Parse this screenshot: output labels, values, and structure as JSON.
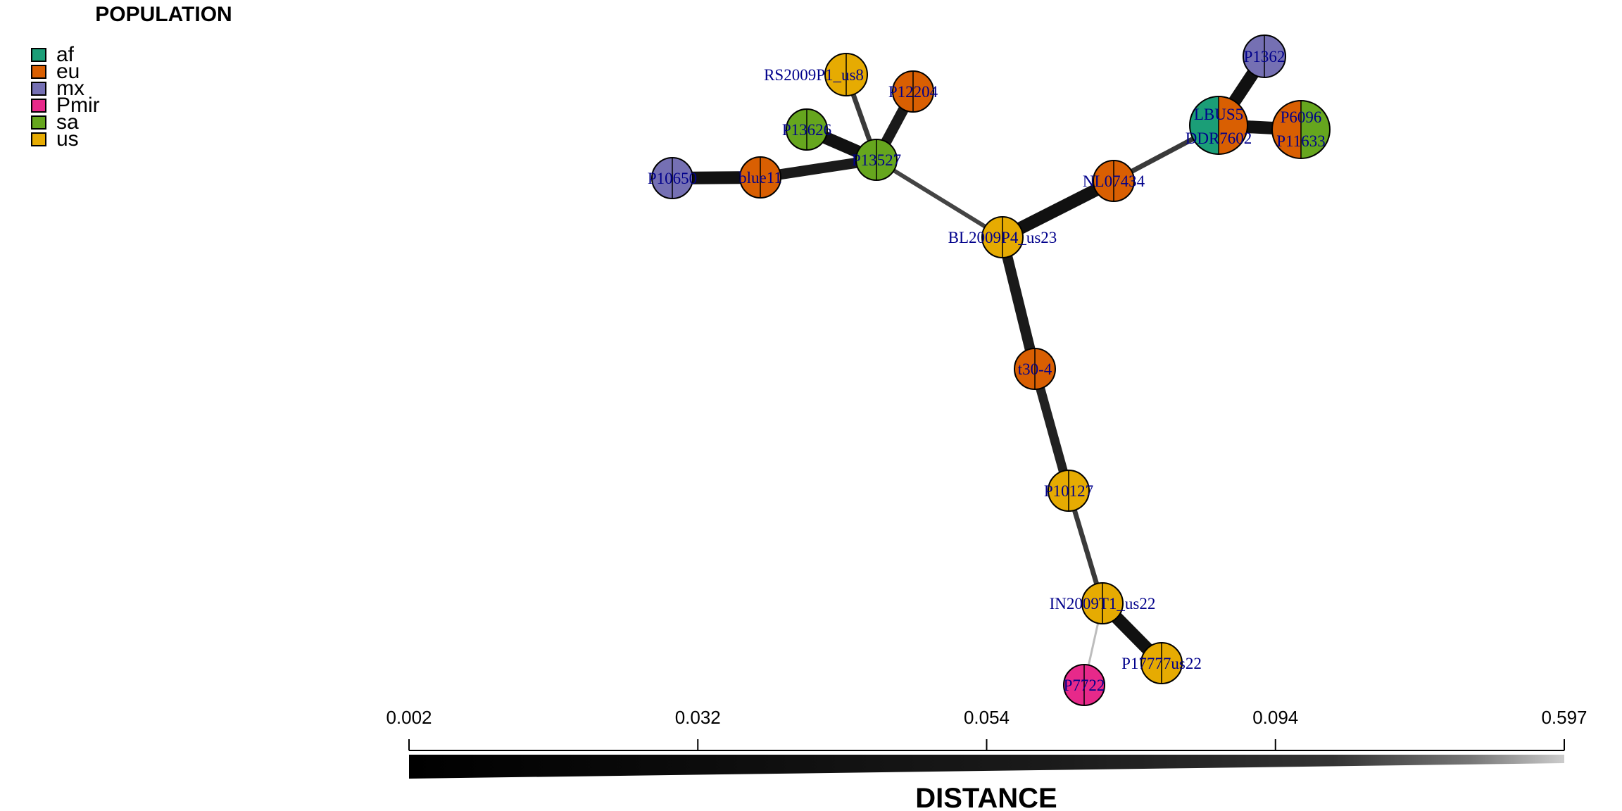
{
  "legend": {
    "title": "POPULATION",
    "items": [
      {
        "label": "af",
        "color": "#1b9e77"
      },
      {
        "label": "eu",
        "color": "#d95f02"
      },
      {
        "label": "mx",
        "color": "#7570b3"
      },
      {
        "label": "Pmir",
        "color": "#e7298a"
      },
      {
        "label": "sa",
        "color": "#66a61e"
      },
      {
        "label": "us",
        "color": "#e6ab02"
      }
    ]
  },
  "diagram": {
    "nodes": [
      {
        "id": "RS2009P1_us8",
        "labels": [
          "RS2009P1_us8"
        ],
        "pops": [
          "us",
          "us"
        ]
      },
      {
        "id": "P12204",
        "labels": [
          "P12204"
        ],
        "pops": [
          "eu",
          "eu"
        ]
      },
      {
        "id": "P13626",
        "labels": [
          "P13626"
        ],
        "pops": [
          "sa",
          "sa"
        ]
      },
      {
        "id": "P13527",
        "labels": [
          "P13527"
        ],
        "pops": [
          "sa",
          "sa"
        ]
      },
      {
        "id": "blue11",
        "labels": [
          "blue11"
        ],
        "pops": [
          "eu",
          "eu"
        ]
      },
      {
        "id": "P10650",
        "labels": [
          "P10650"
        ],
        "pops": [
          "mx",
          "mx"
        ]
      },
      {
        "id": "BL2009P4_us23",
        "labels": [
          "BL2009P4_us23"
        ],
        "pops": [
          "us",
          "us"
        ]
      },
      {
        "id": "NL07434",
        "labels": [
          "NL07434"
        ],
        "pops": [
          "eu",
          "eu"
        ]
      },
      {
        "id": "LBUS5",
        "labels": [
          "LBUS5",
          "DDR7602"
        ],
        "pops": [
          "af",
          "eu"
        ]
      },
      {
        "id": "P1362",
        "labels": [
          "P1362"
        ],
        "pops": [
          "mx",
          "mx"
        ]
      },
      {
        "id": "P6096",
        "labels": [
          "P6096",
          "P11633"
        ],
        "pops": [
          "eu",
          "sa"
        ]
      },
      {
        "id": "t30-4",
        "labels": [
          "t30-4"
        ],
        "pops": [
          "eu",
          "eu"
        ]
      },
      {
        "id": "P10127",
        "labels": [
          "P10127"
        ],
        "pops": [
          "us",
          "us"
        ]
      },
      {
        "id": "IN2009T1_us22",
        "labels": [
          "IN2009T1_us22"
        ],
        "pops": [
          "us",
          "us"
        ]
      },
      {
        "id": "P17777us22",
        "labels": [
          "P17777us22"
        ],
        "pops": [
          "us",
          "us"
        ]
      },
      {
        "id": "P7722",
        "labels": [
          "P7722"
        ],
        "pops": [
          "Pmir",
          "Pmir"
        ]
      }
    ],
    "edges": [
      {
        "from": "P10650",
        "to": "blue11",
        "distance": 0.002
      },
      {
        "from": "blue11",
        "to": "P13527",
        "distance": 0.01
      },
      {
        "from": "P13626",
        "to": "P13527",
        "distance": 0.002
      },
      {
        "from": "RS2009P1_us8",
        "to": "P13527",
        "distance": 0.1
      },
      {
        "from": "P12204",
        "to": "P13527",
        "distance": 0.01
      },
      {
        "from": "P13527",
        "to": "BL2009P4_us23",
        "distance": 0.12
      },
      {
        "from": "BL2009P4_us23",
        "to": "NL07434",
        "distance": 0.002
      },
      {
        "from": "NL07434",
        "to": "LBUS5",
        "distance": 0.1
      },
      {
        "from": "LBUS5",
        "to": "P1362",
        "distance": 0.002
      },
      {
        "from": "LBUS5",
        "to": "P6096",
        "distance": 0.002
      },
      {
        "from": "BL2009P4_us23",
        "to": "t30-4",
        "distance": 0.01
      },
      {
        "from": "t30-4",
        "to": "P10127",
        "distance": 0.02
      },
      {
        "from": "P10127",
        "to": "IN2009T1_us22",
        "distance": 0.1
      },
      {
        "from": "IN2009T1_us22",
        "to": "P17777us22",
        "distance": 0.002
      },
      {
        "from": "IN2009T1_us22",
        "to": "P7722",
        "distance": 0.5
      }
    ]
  },
  "distance_scale": {
    "title": "DISTANCE",
    "ticks": [
      "0.002",
      "0.032",
      "0.054",
      "0.094",
      "0.597"
    ]
  }
}
